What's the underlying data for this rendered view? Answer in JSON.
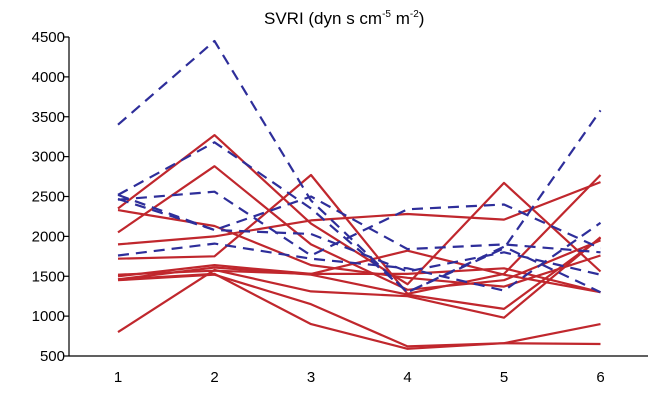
{
  "chart_data": {
    "type": "line",
    "title": {
      "main": "SVRI (dyn s cm",
      "sup1": "-5",
      "mid": " m",
      "sup2": "-2",
      "end": ")"
    },
    "xlabel": "",
    "ylabel": "",
    "x": [
      1,
      2,
      3,
      4,
      5,
      6
    ],
    "x_tick_labels": [
      "1",
      "2",
      "3",
      "4",
      "5",
      "6"
    ],
    "ylim": [
      500,
      4500
    ],
    "y_ticks": [
      500,
      1000,
      1500,
      2000,
      2500,
      3000,
      3500,
      4000,
      4500
    ],
    "grid": false,
    "legend": "none",
    "styles": {
      "solid": {
        "color": "#c0272d",
        "dash": ""
      },
      "dashed": {
        "color": "#2e2e9a",
        "dash": "11,7"
      }
    },
    "series": [
      {
        "style": "solid",
        "values": [
          2350,
          3270,
          2160,
          1400,
          2670,
          1560
        ]
      },
      {
        "style": "solid",
        "values": [
          2050,
          2880,
          1900,
          1330,
          1450,
          1950
        ]
      },
      {
        "style": "solid",
        "values": [
          2330,
          2130,
          1640,
          1480,
          1370,
          1760
        ]
      },
      {
        "style": "solid",
        "values": [
          1900,
          2000,
          2200,
          2280,
          2210,
          2680
        ]
      },
      {
        "style": "solid",
        "values": [
          1720,
          1750,
          2770,
          1280,
          1530,
          2770
        ]
      },
      {
        "style": "solid",
        "values": [
          1500,
          1640,
          1530,
          1530,
          1600,
          1300
        ]
      },
      {
        "style": "solid",
        "values": [
          1520,
          1570,
          1530,
          1820,
          1520,
          1300
        ]
      },
      {
        "style": "solid",
        "values": [
          1450,
          1520,
          1150,
          620,
          660,
          900
        ]
      },
      {
        "style": "solid",
        "values": [
          1460,
          1610,
          1520,
          1270,
          1090,
          1980
        ]
      },
      {
        "style": "solid",
        "values": [
          800,
          1580,
          1310,
          1250,
          980,
          1990
        ]
      },
      {
        "style": "solid",
        "values": [
          1460,
          1530,
          900,
          590,
          660,
          650
        ]
      },
      {
        "style": "dashed",
        "values": [
          3400,
          4450,
          2450,
          1300,
          1850,
          3580
        ]
      },
      {
        "style": "dashed",
        "values": [
          2520,
          3180,
          2350,
          1300,
          1870,
          1300
        ]
      },
      {
        "style": "dashed",
        "values": [
          2460,
          2560,
          1760,
          2340,
          2400,
          1850
        ]
      },
      {
        "style": "dashed",
        "values": [
          2520,
          2080,
          2500,
          1840,
          1900,
          1800
        ]
      },
      {
        "style": "dashed",
        "values": [
          1760,
          1910,
          1720,
          1600,
          1320,
          2170
        ]
      },
      {
        "style": "dashed",
        "values": [
          2470,
          2080,
          2030,
          1560,
          1800,
          1520
        ]
      }
    ]
  }
}
